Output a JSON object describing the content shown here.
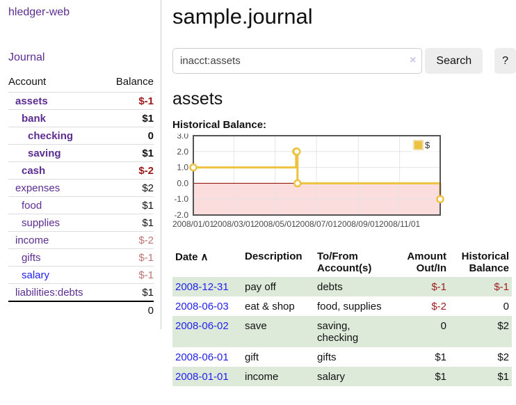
{
  "sidebar": {
    "app_title": "hledger-web",
    "nav": {
      "journal_label": "Journal"
    },
    "accounts_table": {
      "headers": {
        "account": "Account",
        "balance": "Balance"
      },
      "rows": [
        {
          "name": "assets",
          "balance": "$-1",
          "indent": 1,
          "bold": true,
          "balance_class": "neg-strong"
        },
        {
          "name": "bank",
          "balance": "$1",
          "indent": 2,
          "bold": true,
          "balance_class": "pos"
        },
        {
          "name": "checking",
          "balance": "0",
          "indent": 3,
          "bold": true,
          "balance_class": "pos"
        },
        {
          "name": "saving",
          "balance": "$1",
          "indent": 3,
          "bold": true,
          "balance_class": "pos"
        },
        {
          "name": "cash",
          "balance": "$-2",
          "indent": 2,
          "bold": true,
          "balance_class": "neg-strong"
        },
        {
          "name": "expenses",
          "balance": "$2",
          "indent": 1,
          "bold": false,
          "balance_class": "pos"
        },
        {
          "name": "food",
          "balance": "$1",
          "indent": 2,
          "bold": false,
          "balance_class": "pos"
        },
        {
          "name": "supplies",
          "balance": "$1",
          "indent": 2,
          "bold": false,
          "balance_class": "pos"
        },
        {
          "name": "income",
          "balance": "$-2",
          "indent": 1,
          "bold": false,
          "balance_class": "neg-soft"
        },
        {
          "name": "gifts",
          "balance": "$-1",
          "indent": 2,
          "bold": false,
          "balance_class": "neg-soft"
        },
        {
          "name": "salary",
          "balance": "$-1",
          "indent": 2,
          "bold": false,
          "balance_class": "neg-soft",
          "link_color": "blue"
        },
        {
          "name": "liabilities:debts",
          "balance": "$1",
          "indent": 1,
          "bold": false,
          "balance_class": "pos"
        }
      ],
      "total": "0"
    }
  },
  "main": {
    "title": "sample.journal",
    "search": {
      "value": "inacct:assets",
      "clear_icon": "×",
      "search_label": "Search",
      "help_label": "?"
    },
    "account_heading": "assets",
    "chart_label": "Historical Balance:"
  },
  "colors": {
    "link_purple": "#5c2d91",
    "link_blue": "#2222ee",
    "negative_strong": "#a11616",
    "negative_soft": "#c17272",
    "negative_table": "#a02020",
    "row_green": "#dde9d9"
  },
  "chart_data": {
    "type": "line",
    "step": true,
    "title": "Historical Balance:",
    "x_range": [
      "2008-01-01",
      "2008-12-31"
    ],
    "ylim": [
      -2,
      3
    ],
    "grid": true,
    "legend_position": "top-right",
    "series": [
      {
        "name": "$",
        "color": "#edc240",
        "points": [
          {
            "date": "2008-01-01",
            "value": 1
          },
          {
            "date": "2008-06-01",
            "value": 2
          },
          {
            "date": "2008-06-02",
            "value": 2
          },
          {
            "date": "2008-06-03",
            "value": 0
          },
          {
            "date": "2008-12-31",
            "value": -1
          }
        ]
      }
    ],
    "x_ticks": [
      {
        "label": "2008/01/01",
        "date": "2008-01-01"
      },
      {
        "label": "2008/03/01",
        "date": "2008-03-01"
      },
      {
        "label": "2008/05/01",
        "date": "2008-05-01"
      },
      {
        "label": "2008/07/01",
        "date": "2008-07-01"
      },
      {
        "label": "2008/09/01",
        "date": "2008-09-01"
      },
      {
        "label": "2008/11/01",
        "date": "2008-11-01"
      }
    ],
    "y_ticks": [
      {
        "label": "3.0",
        "value": 3
      },
      {
        "label": "2.0",
        "value": 2
      },
      {
        "label": "1.0",
        "value": 1
      },
      {
        "label": "0.0",
        "value": 0
      },
      {
        "label": "-1.0",
        "value": -1
      },
      {
        "label": "-2.0",
        "value": -2
      }
    ],
    "negative_area_color": "#fbdddd",
    "zero_line_color": "#8b0000",
    "border_color": "#545454",
    "grid_color": "#e4e4e4"
  },
  "register": {
    "headers": {
      "date": {
        "label": "Date",
        "sort_icon": "∧"
      },
      "description": {
        "line1": "Description"
      },
      "accounts": {
        "line1": "To/From",
        "line2": "Account(s)"
      },
      "amount": {
        "line1": "Amount",
        "line2": "Out/In"
      },
      "balance": {
        "line1": "Historical",
        "line2": "Balance"
      }
    },
    "rows": [
      {
        "date": "2008-12-31",
        "description": "pay off",
        "accounts": "debts",
        "amount": "$-1",
        "amount_negative": true,
        "balance": "$-1",
        "balance_negative": true,
        "shaded": true
      },
      {
        "date": "2008-06-03",
        "description": "eat & shop",
        "accounts": "food, supplies",
        "amount": "$-2",
        "amount_negative": true,
        "balance": "0",
        "balance_negative": false,
        "shaded": false
      },
      {
        "date": "2008-06-02",
        "description": "save",
        "accounts": "saving, checking",
        "amount": "0",
        "amount_negative": false,
        "balance": "$2",
        "balance_negative": false,
        "shaded": true
      },
      {
        "date": "2008-06-01",
        "description": "gift",
        "accounts": "gifts",
        "amount": "$1",
        "amount_negative": false,
        "balance": "$2",
        "balance_negative": false,
        "shaded": false
      },
      {
        "date": "2008-01-01",
        "description": "income",
        "accounts": "salary",
        "amount": "$1",
        "amount_negative": false,
        "balance": "$1",
        "balance_negative": false,
        "shaded": true
      }
    ]
  }
}
